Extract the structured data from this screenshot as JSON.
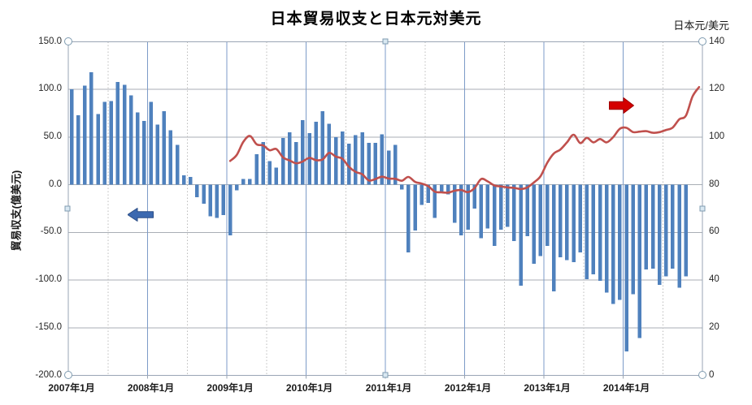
{
  "title": "日本貿易収支と日本元対美元",
  "right_axis_unit": "日本元/美元",
  "left_axis_title": "貿易収支(億美元)",
  "left_axis_ticks": [
    "150.0",
    "100.0",
    "50.0",
    "0.0",
    "-50.0",
    "-100.0",
    "-150.0",
    "-200.0"
  ],
  "right_axis_ticks": [
    "140",
    "120",
    "100",
    "80",
    "60",
    "40",
    "20",
    "0"
  ],
  "x_axis_labels": [
    "2007年1月",
    "2008年1月",
    "2009年1月",
    "2010年1月",
    "2011年1月",
    "2012年1月",
    "2013年1月",
    "2014年1月"
  ],
  "colors": {
    "bar": "#4f81bd",
    "line": "#c0504d",
    "left_arrow_fill": "#3c69b0",
    "left_arrow_stroke": "#2d4f86",
    "right_arrow_fill": "#d40000",
    "right_arrow_stroke": "#9e0000",
    "h_gridline": "#a9aeb5",
    "year_gridline": "#7d9bc8",
    "half_year_gridline": "#bcbcbc",
    "plot_border": "#9aa5b5"
  },
  "chart_data": {
    "type": "combo",
    "grid": true,
    "left_axis": {
      "min": -200,
      "max": 150,
      "step": 50
    },
    "right_axis": {
      "min": 0,
      "max": 140,
      "step": 20
    },
    "categories": [
      "2007-01",
      "2007-02",
      "2007-03",
      "2007-04",
      "2007-05",
      "2007-06",
      "2007-07",
      "2007-08",
      "2007-09",
      "2007-10",
      "2007-11",
      "2007-12",
      "2008-01",
      "2008-02",
      "2008-03",
      "2008-04",
      "2008-05",
      "2008-06",
      "2008-07",
      "2008-08",
      "2008-09",
      "2008-10",
      "2008-11",
      "2008-12",
      "2009-01",
      "2009-02",
      "2009-03",
      "2009-04",
      "2009-05",
      "2009-06",
      "2009-07",
      "2009-08",
      "2009-09",
      "2009-10",
      "2009-11",
      "2009-12",
      "2010-01",
      "2010-02",
      "2010-03",
      "2010-04",
      "2010-05",
      "2010-06",
      "2010-07",
      "2010-08",
      "2010-09",
      "2010-10",
      "2010-11",
      "2010-12",
      "2011-01",
      "2011-02",
      "2011-03",
      "2011-04",
      "2011-05",
      "2011-06",
      "2011-07",
      "2011-08",
      "2011-09",
      "2011-10",
      "2011-11",
      "2011-12",
      "2012-01",
      "2012-02",
      "2012-03",
      "2012-04",
      "2012-05",
      "2012-06",
      "2012-07",
      "2012-08",
      "2012-09",
      "2012-10",
      "2012-11",
      "2012-12",
      "2013-01",
      "2013-02",
      "2013-03",
      "2013-04",
      "2013-05",
      "2013-06",
      "2013-07",
      "2013-08",
      "2013-09",
      "2013-10",
      "2013-11",
      "2013-12",
      "2014-01",
      "2014-02",
      "2014-03",
      "2014-04",
      "2014-05",
      "2014-06",
      "2014-07",
      "2014-08",
      "2014-09",
      "2014-10",
      "2014-11",
      "2014-12"
    ],
    "series": [
      {
        "name": "貿易収支",
        "type": "bar",
        "axis": "left",
        "values": [
          100,
          73,
          104,
          118,
          74,
          87,
          88,
          108,
          105,
          94,
          76,
          67,
          87,
          63,
          77,
          57,
          42,
          10,
          8,
          -13,
          -20,
          -33,
          -35,
          -32,
          -53,
          -6,
          6,
          6,
          32,
          45,
          25,
          18,
          49,
          55,
          45,
          68,
          54,
          66,
          77,
          64,
          50,
          56,
          43,
          52,
          55,
          44,
          44,
          53,
          36,
          42,
          -5,
          -71,
          -48,
          -21,
          -19,
          -35,
          -9,
          -10,
          -40,
          -53,
          -47,
          -25,
          -56,
          -46,
          -64,
          -47,
          -44,
          -59,
          -106,
          -54,
          -83,
          -75,
          -64,
          -112,
          -76,
          -79,
          -81,
          -71,
          -99,
          -94,
          -101,
          -113,
          -125,
          -121,
          -175,
          -115,
          -161,
          -89,
          -88,
          -105,
          -96,
          -88,
          -108,
          -96,
          null,
          null
        ]
      },
      {
        "name": "日本元対美元",
        "type": "line",
        "axis": "right",
        "values": [
          null,
          null,
          null,
          null,
          null,
          null,
          null,
          null,
          null,
          null,
          null,
          null,
          null,
          null,
          null,
          null,
          null,
          null,
          null,
          null,
          null,
          null,
          null,
          null,
          90,
          92.5,
          98,
          100.5,
          97,
          96.5,
          94.5,
          95,
          91.5,
          90.2,
          89,
          89.8,
          91.3,
          90.3,
          90.6,
          93.4,
          91.8,
          90.9,
          87.5,
          85.4,
          84.4,
          81.8,
          82.4,
          83.4,
          82.6,
          82.5,
          81.7,
          83.3,
          81.2,
          80.5,
          79.4,
          77.1,
          76.8,
          76.7,
          77.5,
          77.8,
          76.9,
          78.6,
          82.4,
          81.4,
          79.7,
          79.3,
          78.9,
          78.7,
          78.2,
          78.9,
          81,
          83.6,
          89.2,
          93.1,
          94.8,
          97.8,
          101,
          97.5,
          99.7,
          97.8,
          99.2,
          97.8,
          100,
          103.5,
          103.9,
          102.1,
          102.3,
          102.5,
          101.8,
          102.1,
          103,
          104,
          107.5,
          109,
          117,
          121
        ]
      }
    ]
  }
}
